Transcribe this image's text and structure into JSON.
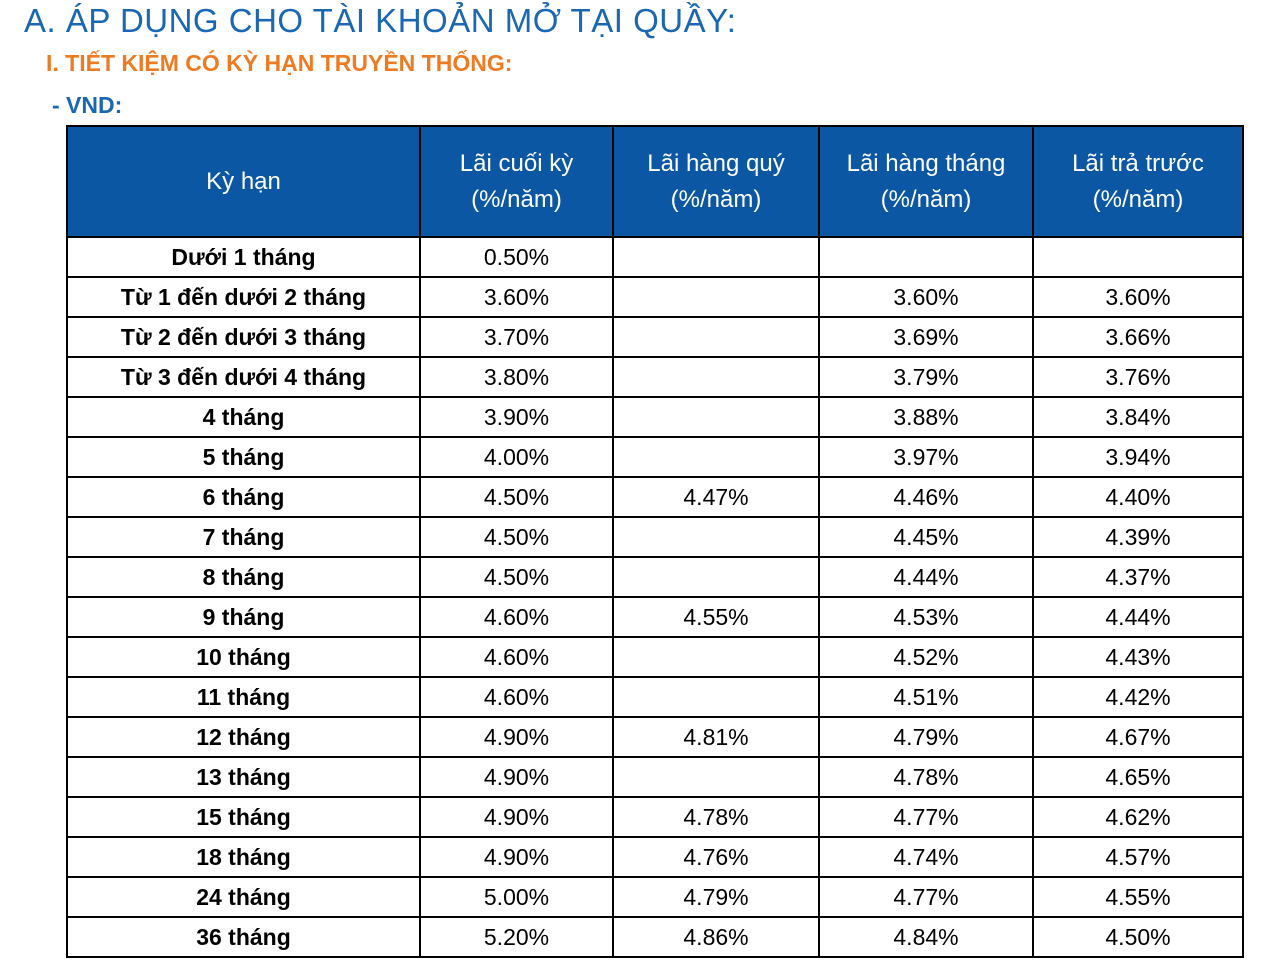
{
  "heading": "A. ÁP DỤNG CHO TÀI KHOẢN MỞ TẠI QUẦY:",
  "subheading": "I. TIẾT KIỆM CÓ KỲ HẠN TRUYỀN THỐNG:",
  "currency": "- VND:",
  "colors": {
    "heading": "#1a67b3",
    "subheading": "#ee7b22",
    "table_header_bg": "#0b57a3"
  },
  "table": {
    "headers": [
      {
        "line1": "Kỳ hạn",
        "line2": ""
      },
      {
        "line1": "Lãi cuối kỳ",
        "line2": "(%/năm)"
      },
      {
        "line1": "Lãi hàng quý",
        "line2": "(%/năm)"
      },
      {
        "line1": "Lãi hàng tháng",
        "line2": "(%/năm)"
      },
      {
        "line1": "Lãi trả trước",
        "line2": "(%/năm)"
      }
    ],
    "rows": [
      [
        "Dưới 1 tháng",
        "0.50%",
        "",
        "",
        ""
      ],
      [
        "Từ 1 đến dưới 2 tháng",
        "3.60%",
        "",
        "3.60%",
        "3.60%"
      ],
      [
        "Từ 2 đến dưới 3 tháng",
        "3.70%",
        "",
        "3.69%",
        "3.66%"
      ],
      [
        "Từ 3 đến dưới 4 tháng",
        "3.80%",
        "",
        "3.79%",
        "3.76%"
      ],
      [
        "4 tháng",
        "3.90%",
        "",
        "3.88%",
        "3.84%"
      ],
      [
        "5 tháng",
        "4.00%",
        "",
        "3.97%",
        "3.94%"
      ],
      [
        "6 tháng",
        "4.50%",
        "4.47%",
        "4.46%",
        "4.40%"
      ],
      [
        "7 tháng",
        "4.50%",
        "",
        "4.45%",
        "4.39%"
      ],
      [
        "8 tháng",
        "4.50%",
        "",
        "4.44%",
        "4.37%"
      ],
      [
        "9 tháng",
        "4.60%",
        "4.55%",
        "4.53%",
        "4.44%"
      ],
      [
        "10 tháng",
        "4.60%",
        "",
        "4.52%",
        "4.43%"
      ],
      [
        "11 tháng",
        "4.60%",
        "",
        "4.51%",
        "4.42%"
      ],
      [
        "12 tháng",
        "4.90%",
        "4.81%",
        "4.79%",
        "4.67%"
      ],
      [
        "13 tháng",
        "4.90%",
        "",
        "4.78%",
        "4.65%"
      ],
      [
        "15 tháng",
        "4.90%",
        "4.78%",
        "4.77%",
        "4.62%"
      ],
      [
        "18 tháng",
        "4.90%",
        "4.76%",
        "4.74%",
        "4.57%"
      ],
      [
        "24 tháng",
        "5.00%",
        "4.79%",
        "4.77%",
        "4.55%"
      ],
      [
        "36 tháng",
        "5.20%",
        "4.86%",
        "4.84%",
        "4.50%"
      ]
    ]
  }
}
